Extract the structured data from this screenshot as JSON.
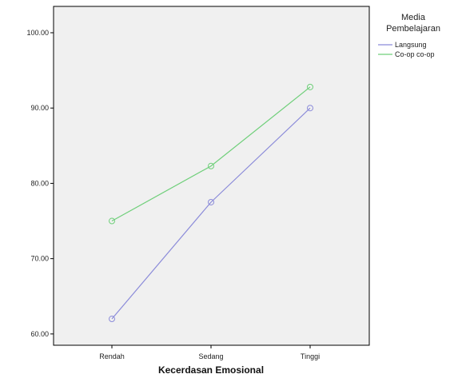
{
  "chart_data": {
    "type": "line",
    "title": "",
    "xlabel": "Kecerdasan Emosional",
    "ylabel": "",
    "categories": [
      "Rendah",
      "Sedang",
      "Tinggi"
    ],
    "y_ticks": [
      "60.00",
      "70.00",
      "80.00",
      "90.00",
      "100.00"
    ],
    "ylim": [
      58.5,
      103.5
    ],
    "grid": false,
    "legend": {
      "title_line1": "Media",
      "title_line2": "Pembelajaran",
      "placement": "right"
    },
    "series": [
      {
        "name": "Langsung",
        "values": [
          62.0,
          77.5,
          90.0
        ],
        "color": "#8b8bd9"
      },
      {
        "name": "Co-op co-op",
        "values": [
          75.0,
          82.3,
          92.8
        ],
        "color": "#6fcf7a"
      }
    ],
    "plot_background": "#f0f0f0"
  }
}
